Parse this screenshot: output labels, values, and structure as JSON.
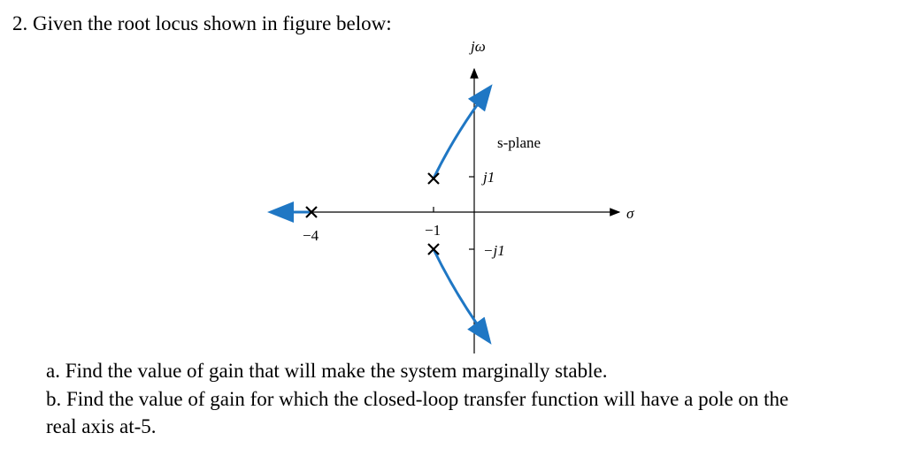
{
  "question": {
    "title": "2. Given the root locus shown in figure below:"
  },
  "figure": {
    "imag_axis": "jω",
    "real_axis": "σ",
    "plane": "s-plane",
    "j1": "j1",
    "minus_j1": "−j1",
    "minus4": "−4",
    "minus1": "−1"
  },
  "parts": {
    "a": [
      "a. Find the value of gain that will make the system marginally stable."
    ],
    "b": [
      "b. Find the value of gain for which the closed-loop transfer function will have a pole on the",
      "real axis at-5."
    ]
  }
}
